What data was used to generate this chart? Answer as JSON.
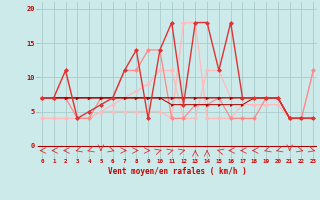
{
  "x": [
    0,
    1,
    2,
    3,
    4,
    5,
    6,
    7,
    8,
    9,
    10,
    11,
    12,
    13,
    14,
    15,
    16,
    17,
    18,
    19,
    20,
    21,
    22,
    23
  ],
  "line_dark1_y": [
    7,
    7,
    7,
    7,
    7,
    7,
    7,
    7,
    7,
    7,
    7,
    7,
    7,
    7,
    7,
    7,
    7,
    7,
    7,
    7,
    7,
    4,
    4,
    4
  ],
  "line_dark2_y": [
    7,
    7,
    7,
    4,
    4,
    7,
    7,
    11,
    11,
    14,
    14,
    4,
    4,
    6,
    6,
    7,
    4,
    4,
    4,
    7,
    7,
    4,
    4,
    11
  ],
  "line_flat_y": [
    7,
    7,
    7,
    7,
    7,
    7,
    7,
    7,
    7,
    7,
    7,
    6,
    6,
    6,
    6,
    6,
    6,
    6,
    7,
    7,
    7,
    4,
    4,
    4
  ],
  "line_spike_y": [
    7,
    7,
    11,
    4,
    5,
    6,
    7,
    11,
    14,
    4,
    14,
    18,
    6,
    18,
    18,
    11,
    18,
    7,
    7,
    7,
    7,
    4,
    4,
    4
  ],
  "line_pink1_y": [
    7,
    7,
    11,
    4,
    4,
    5,
    6,
    7,
    8,
    9,
    11,
    11,
    4,
    4,
    11,
    11,
    7,
    7,
    7,
    7,
    7,
    4,
    4,
    11
  ],
  "line_pink2_y": [
    4,
    4,
    4,
    4,
    4,
    5,
    5,
    5,
    5,
    5,
    5,
    4,
    18,
    18,
    4,
    4,
    4,
    6,
    6,
    6,
    6,
    4,
    4,
    4
  ],
  "bg_color": "#cdeaea",
  "grid_color": "#aacccc",
  "color_dark": "#aa0000",
  "color_med": "#dd3333",
  "color_light": "#ff8888",
  "color_pale": "#ffbbbb",
  "xlabel": "Vent moyen/en rafales ( km/h )",
  "yticks": [
    0,
    5,
    10,
    15,
    20
  ],
  "xticks": [
    0,
    1,
    2,
    3,
    4,
    5,
    6,
    7,
    8,
    9,
    10,
    11,
    12,
    13,
    14,
    15,
    16,
    17,
    18,
    19,
    20,
    21,
    22,
    23
  ],
  "ylim": [
    -1.5,
    21
  ],
  "xlim": [
    -0.3,
    23.3
  ]
}
